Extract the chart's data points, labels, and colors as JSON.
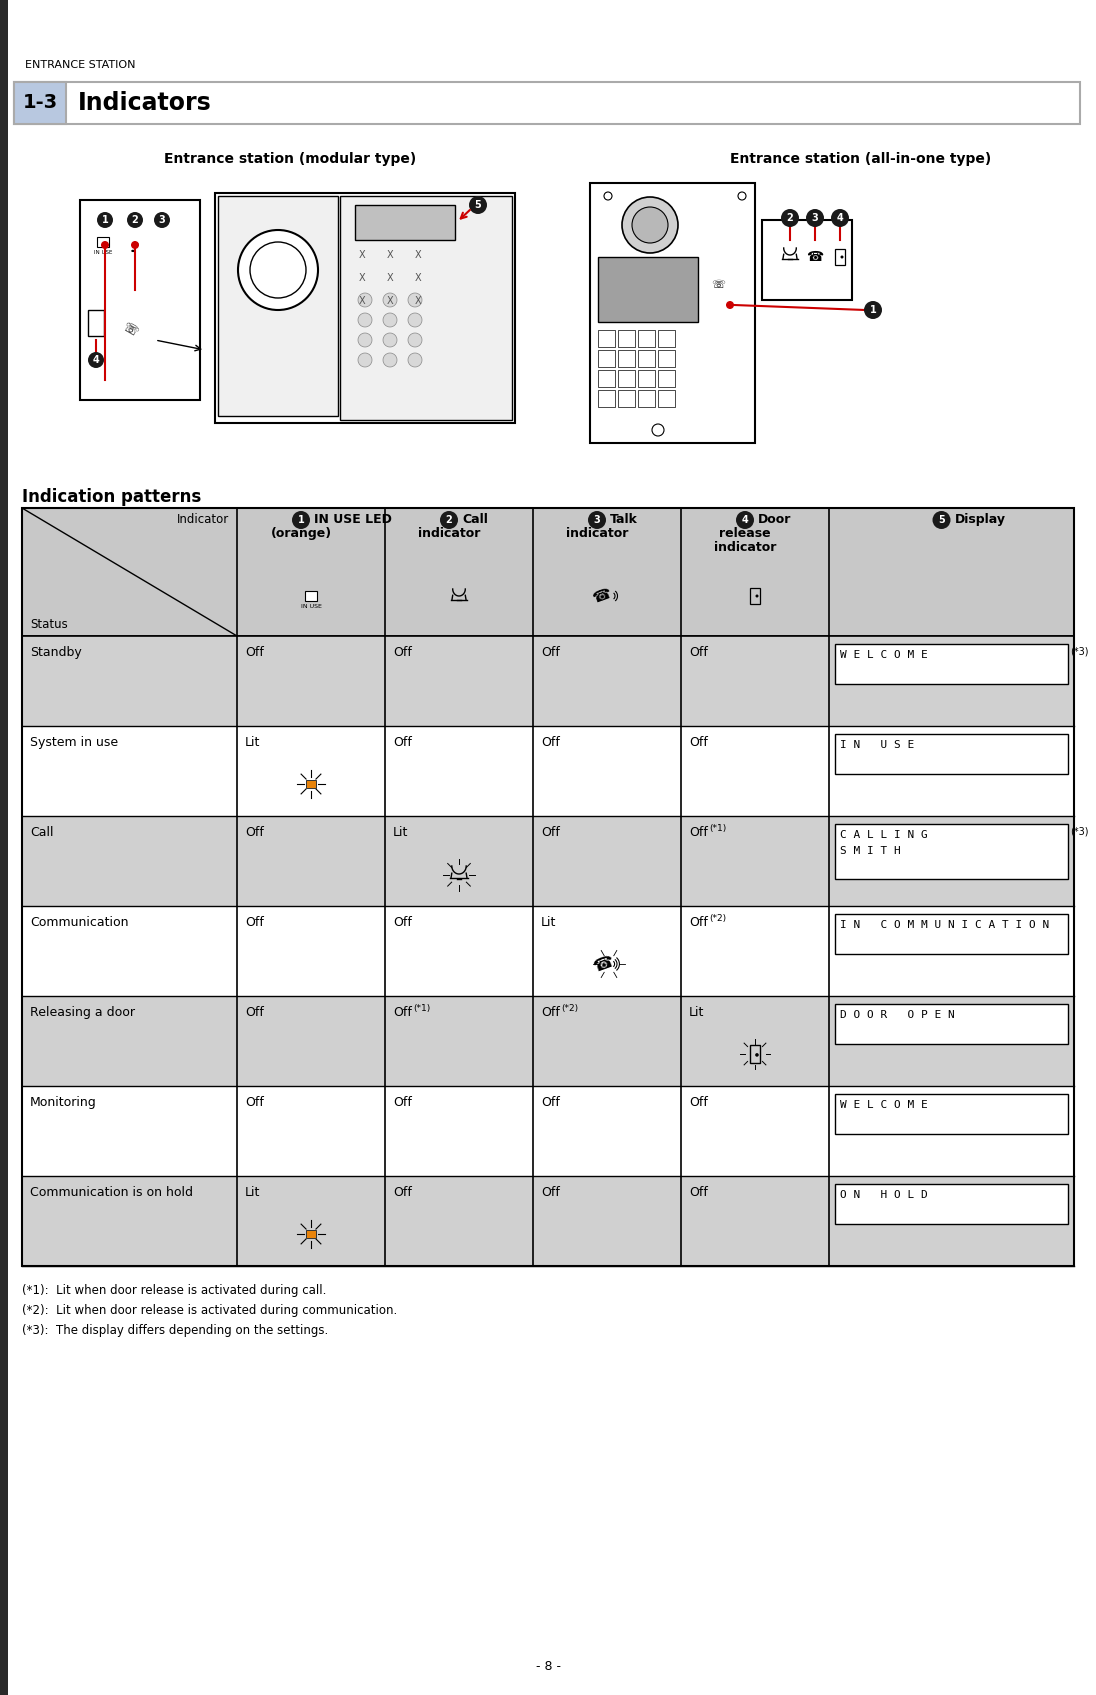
{
  "page_title": "ENTRANCE STATION",
  "section_number": "1-3",
  "section_title": "Indicators",
  "image_title_left": "Entrance station (modular type)",
  "image_title_right": "Entrance station (all-in-one type)",
  "indication_patterns_title": "Indication patterns",
  "col_headers": [
    {
      "num": "1",
      "line1": "IN USE LED",
      "line2": "(orange)"
    },
    {
      "num": "2",
      "line1": "Call",
      "line2": "indicator"
    },
    {
      "num": "3",
      "line1": "Talk",
      "line2": "indicator"
    },
    {
      "num": "4",
      "line1": "Door",
      "line2": "release",
      "line3": "indicator"
    },
    {
      "num": "5",
      "line1": "Display"
    }
  ],
  "row_data": [
    {
      "status": "Standby",
      "col1": "Off",
      "col2": "Off",
      "col3": "Off",
      "col4": "Off",
      "col5": "W E L C O M E",
      "col5b": "",
      "col5_note": "(*3)",
      "col1_lit": false,
      "col2_lit": false,
      "col3_lit": false,
      "col4_lit": false,
      "col2_note": "",
      "col3_note": "",
      "col4_note": "",
      "bg": "#d0d0d0"
    },
    {
      "status": "System in use",
      "col1": "Lit",
      "col2": "Off",
      "col3": "Off",
      "col4": "Off",
      "col5": "I N   U S E",
      "col5b": "",
      "col5_note": "",
      "col1_lit": true,
      "col2_lit": false,
      "col3_lit": false,
      "col4_lit": false,
      "col2_note": "",
      "col3_note": "",
      "col4_note": "",
      "bg": "#ffffff"
    },
    {
      "status": "Call",
      "col1": "Off",
      "col2": "Lit",
      "col3": "Off",
      "col4": "Off",
      "col5": "C A L L I N G",
      "col5b": "S M I T H",
      "col5_note": "(*3)",
      "col1_lit": false,
      "col2_lit": true,
      "col3_lit": false,
      "col4_lit": false,
      "col2_note": "",
      "col3_note": "",
      "col4_note": "(*1)",
      "bg": "#d0d0d0"
    },
    {
      "status": "Communication",
      "col1": "Off",
      "col2": "Off",
      "col3": "Lit",
      "col4": "Off",
      "col5": "I N   C O M M U N I C A T I O N",
      "col5b": "",
      "col5_note": "",
      "col1_lit": false,
      "col2_lit": false,
      "col3_lit": true,
      "col4_lit": false,
      "col2_note": "",
      "col3_note": "",
      "col4_note": "(*2)",
      "bg": "#ffffff"
    },
    {
      "status": "Releasing a door",
      "col1": "Off",
      "col2": "Off",
      "col3": "Off",
      "col4": "Lit",
      "col5": "D O O R   O P E N",
      "col5b": "",
      "col5_note": "",
      "col1_lit": false,
      "col2_lit": false,
      "col3_lit": false,
      "col4_lit": true,
      "col2_note": "(*1)",
      "col3_note": "(*2)",
      "col4_note": "",
      "bg": "#d0d0d0"
    },
    {
      "status": "Monitoring",
      "col1": "Off",
      "col2": "Off",
      "col3": "Off",
      "col4": "Off",
      "col5": "W E L C O M E",
      "col5b": "",
      "col5_note": "",
      "col1_lit": false,
      "col2_lit": false,
      "col3_lit": false,
      "col4_lit": false,
      "col2_note": "",
      "col3_note": "",
      "col4_note": "",
      "bg": "#ffffff"
    },
    {
      "status": "Communication is on hold",
      "col1": "Lit",
      "col2": "Off",
      "col3": "Off",
      "col4": "Off",
      "col5": "O N   H O L D",
      "col5b": "",
      "col5_note": "",
      "col1_lit": true,
      "col2_lit": false,
      "col3_lit": false,
      "col4_lit": false,
      "col2_note": "",
      "col3_note": "",
      "col4_note": "",
      "bg": "#d0d0d0"
    }
  ],
  "footnotes": [
    "(*1):  Lit when door release is activated during call.",
    "(*2):  Lit when door release is activated during communication.",
    "(*3):  The display differs depending on the settings."
  ],
  "page_number": "- 8 -",
  "bg_color": "#ffffff",
  "accent_color": "#cc0000",
  "orange_color": "#e8830a",
  "header_bg": "#c8c8c8",
  "badge_color": "#1a1a1a"
}
